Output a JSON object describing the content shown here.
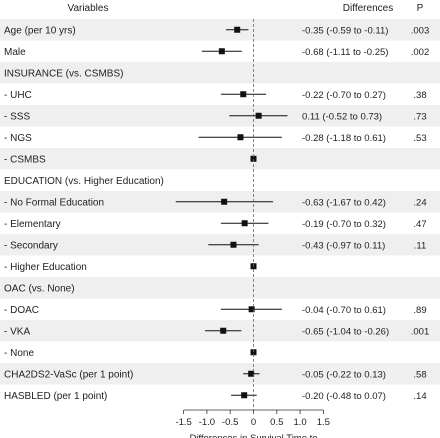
{
  "chart_data": {
    "type": "forest",
    "header": {
      "variables": "Variables",
      "differences": "Differences",
      "p": "P"
    },
    "xlabel": "Differences in Survival Time to\nMajor Bleeding (months)",
    "x_ticks": [
      -1.5,
      -1.0,
      -0.5,
      0.0,
      0.5,
      1.0,
      1.5
    ],
    "x_tick_labels": [
      "-1.5",
      "-1.0",
      "-0.5",
      "0",
      "0.5",
      "1.0",
      "1.5"
    ],
    "xlim": [
      -1.9,
      1.9
    ],
    "rows": [
      {
        "label": "Age (per 10 yrs)",
        "est": -0.35,
        "lo": -0.59,
        "hi": -0.11,
        "text": "-0.35 (-0.59 to -0.11)",
        "p": ".003"
      },
      {
        "label": "Male",
        "est": -0.68,
        "lo": -1.11,
        "hi": -0.25,
        "text": "-0.68 (-1.11 to -0.25)",
        "p": ".002"
      },
      {
        "label": "INSURANCE (vs. CSMBS)",
        "est": null,
        "lo": null,
        "hi": null,
        "text": "",
        "p": ""
      },
      {
        "label": "- UHC",
        "est": -0.22,
        "lo": -0.7,
        "hi": 0.27,
        "text": "-0.22 (-0.70 to 0.27)",
        "p": ".38"
      },
      {
        "label": "- SSS",
        "est": 0.11,
        "lo": -0.52,
        "hi": 0.73,
        "text": "0.11 (-0.52 to 0.73)",
        "p": ".73"
      },
      {
        "label": "- NGS",
        "est": -0.28,
        "lo": -1.18,
        "hi": 0.61,
        "text": "-0.28 (-1.18 to 0.61)",
        "p": ".53"
      },
      {
        "label": "- CSMBS",
        "est": 0.0,
        "lo": null,
        "hi": null,
        "text": "",
        "p": ""
      },
      {
        "label": "EDUCATION (vs. Higher Education)",
        "est": null,
        "lo": null,
        "hi": null,
        "text": "",
        "p": ""
      },
      {
        "label": "- No Formal Education",
        "est": -0.63,
        "lo": -1.67,
        "hi": 0.42,
        "text": "-0.63 (-1.67 to 0.42)",
        "p": ".24"
      },
      {
        "label": "- Elementary",
        "est": -0.19,
        "lo": -0.7,
        "hi": 0.32,
        "text": "-0.19 (-0.70 to 0.32)",
        "p": ".47"
      },
      {
        "label": "- Secondary",
        "est": -0.43,
        "lo": -0.97,
        "hi": 0.11,
        "text": "-0.43 (-0.97 to 0.11)",
        "p": ".11"
      },
      {
        "label": "- Higher Education",
        "est": 0.0,
        "lo": null,
        "hi": null,
        "text": "",
        "p": ""
      },
      {
        "label": "OAC (vs. None)",
        "est": null,
        "lo": null,
        "hi": null,
        "text": "",
        "p": ""
      },
      {
        "label": "- DOAC",
        "est": -0.04,
        "lo": -0.7,
        "hi": 0.61,
        "text": "-0.04 (-0.70 to 0.61)",
        "p": ".89"
      },
      {
        "label": "- VKA",
        "est": -0.65,
        "lo": -1.04,
        "hi": -0.26,
        "text": "-0.65 (-1.04 to -0.26)",
        "p": ".001"
      },
      {
        "label": "- None",
        "est": 0.0,
        "lo": null,
        "hi": null,
        "text": "",
        "p": ""
      },
      {
        "label": "CHA2DS2-VaSc (per 1 point)",
        "est": -0.05,
        "lo": -0.22,
        "hi": 0.13,
        "text": "-0.05 (-0.22 to 0.13)",
        "p": ".58"
      },
      {
        "label": "HASBLED (per 1 point)",
        "est": -0.2,
        "lo": -0.48,
        "hi": 0.07,
        "text": "-0.20 (-0.48 to 0.07)",
        "p": ".14"
      }
    ],
    "colors": {
      "stripe": "#efefef",
      "marker": "#111111",
      "line": "#111111",
      "text": "#222222"
    }
  }
}
